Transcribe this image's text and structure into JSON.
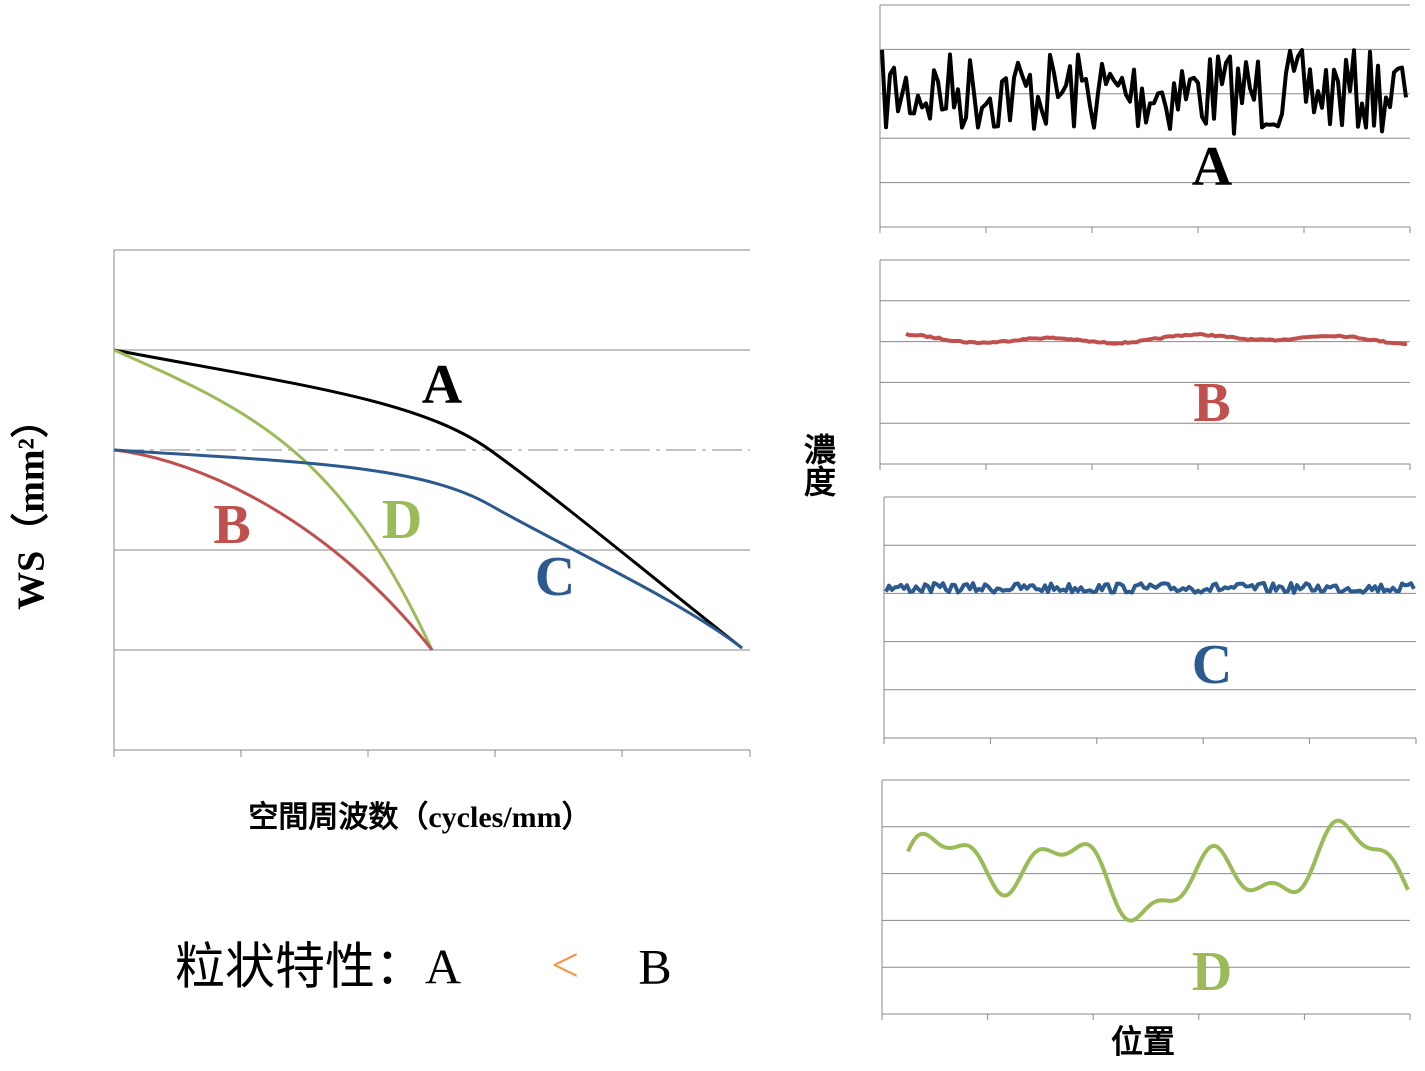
{
  "left_chart": {
    "y_label": "WS（mm²）",
    "x_label": "空間周波数（cycles/mm）",
    "curve_labels": [
      "A",
      "B",
      "C",
      "D"
    ]
  },
  "caption": {
    "left": "粒状特性：A",
    "operator": "<",
    "right": "B"
  },
  "right_panels": {
    "y_label": "濃度",
    "x_label": "位置",
    "panel_labels": [
      "A",
      "B",
      "C",
      "D"
    ]
  }
}
